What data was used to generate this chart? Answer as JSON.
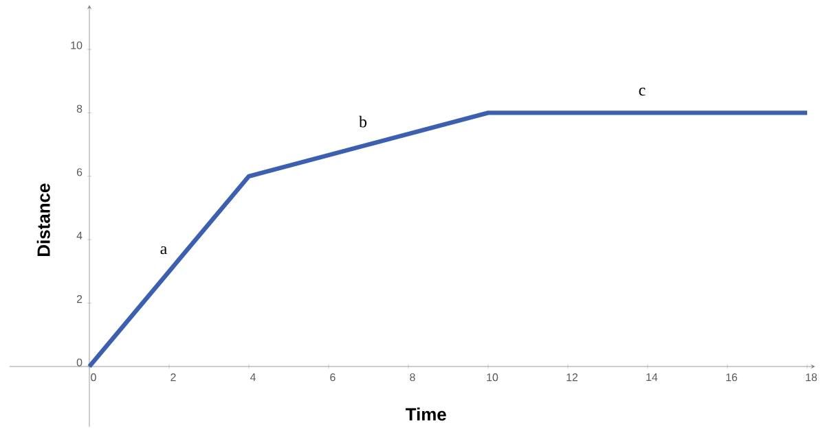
{
  "chart_data": {
    "type": "line",
    "xlabel": "Time",
    "ylabel": "Distance",
    "x": [
      0,
      4,
      10,
      18
    ],
    "series": [
      {
        "color": "#3a5fb5",
        "values": [
          0,
          6,
          8,
          8
        ]
      }
    ],
    "xlim": [
      -2,
      18.2
    ],
    "ylim": [
      -1.9,
      11.4
    ],
    "xticks": [
      0,
      2,
      4,
      6,
      8,
      10,
      12,
      14,
      16,
      18
    ],
    "yticks": [
      0,
      2,
      4,
      6,
      8,
      10
    ],
    "annotations": [
      "a",
      "b",
      "c"
    ]
  }
}
